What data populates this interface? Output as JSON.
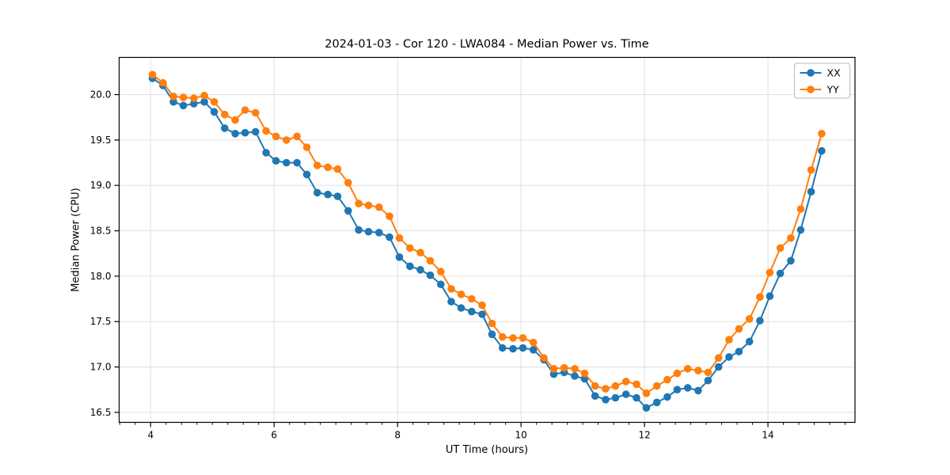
{
  "chart_data": {
    "type": "line",
    "title": "2024-01-03 - Cor 120 - LWA084 - Median Power vs. Time",
    "xlabel": "UT Time (hours)",
    "ylabel": "Median Power (CPU)",
    "xlim": [
      3.49,
      15.41
    ],
    "ylim": [
      16.39,
      20.41
    ],
    "x_major_ticks": [
      4,
      6,
      8,
      10,
      12,
      14
    ],
    "x_minor_step": 0.25,
    "y_major_ticks": [
      16.5,
      17.0,
      17.5,
      18.0,
      18.5,
      19.0,
      19.5,
      20.0
    ],
    "grid": true,
    "grid_color": "#e0e0e0",
    "legend_position": "upper right",
    "x": [
      4.03,
      4.2,
      4.37,
      4.53,
      4.7,
      4.87,
      5.03,
      5.2,
      5.37,
      5.53,
      5.7,
      5.87,
      6.03,
      6.2,
      6.37,
      6.53,
      6.7,
      6.87,
      7.03,
      7.2,
      7.37,
      7.53,
      7.7,
      7.87,
      8.03,
      8.2,
      8.37,
      8.53,
      8.7,
      8.87,
      9.03,
      9.2,
      9.37,
      9.53,
      9.7,
      9.87,
      10.03,
      10.2,
      10.37,
      10.53,
      10.7,
      10.87,
      11.03,
      11.2,
      11.37,
      11.53,
      11.7,
      11.87,
      12.03,
      12.2,
      12.37,
      12.53,
      12.7,
      12.87,
      13.03,
      13.2,
      13.37,
      13.53,
      13.7,
      13.87,
      14.03,
      14.2,
      14.37,
      14.53,
      14.7,
      14.87
    ],
    "series": [
      {
        "name": "XX",
        "color": "#1f77b4",
        "marker": "circle",
        "values": [
          20.18,
          20.1,
          19.92,
          19.88,
          19.9,
          19.92,
          19.81,
          19.63,
          19.57,
          19.58,
          19.59,
          19.36,
          19.27,
          19.25,
          19.25,
          19.12,
          18.92,
          18.9,
          18.88,
          18.72,
          18.51,
          18.49,
          18.48,
          18.43,
          18.21,
          18.11,
          18.07,
          18.01,
          17.91,
          17.72,
          17.65,
          17.61,
          17.58,
          17.36,
          17.21,
          17.2,
          17.21,
          17.19,
          17.08,
          16.92,
          16.94,
          16.9,
          16.87,
          16.68,
          16.64,
          16.66,
          16.7,
          16.66,
          16.55,
          16.61,
          16.67,
          16.75,
          16.77,
          16.74,
          16.85,
          17.0,
          17.11,
          17.17,
          17.28,
          17.51,
          17.78,
          18.03,
          18.17,
          18.51,
          18.93,
          19.38
        ]
      },
      {
        "name": "YY",
        "color": "#ff7f0e",
        "marker": "circle",
        "values": [
          20.22,
          20.13,
          19.98,
          19.97,
          19.96,
          19.99,
          19.92,
          19.78,
          19.72,
          19.83,
          19.8,
          19.6,
          19.54,
          19.5,
          19.54,
          19.42,
          19.22,
          19.2,
          19.18,
          19.03,
          18.8,
          18.78,
          18.76,
          18.66,
          18.42,
          18.31,
          18.26,
          18.17,
          18.05,
          17.86,
          17.8,
          17.75,
          17.68,
          17.48,
          17.33,
          17.32,
          17.32,
          17.27,
          17.1,
          16.98,
          16.99,
          16.98,
          16.93,
          16.79,
          16.76,
          16.79,
          16.84,
          16.81,
          16.71,
          16.79,
          16.86,
          16.93,
          16.98,
          16.96,
          16.94,
          17.1,
          17.3,
          17.42,
          17.53,
          17.77,
          18.04,
          18.31,
          18.42,
          18.74,
          19.17,
          19.57
        ]
      }
    ]
  }
}
